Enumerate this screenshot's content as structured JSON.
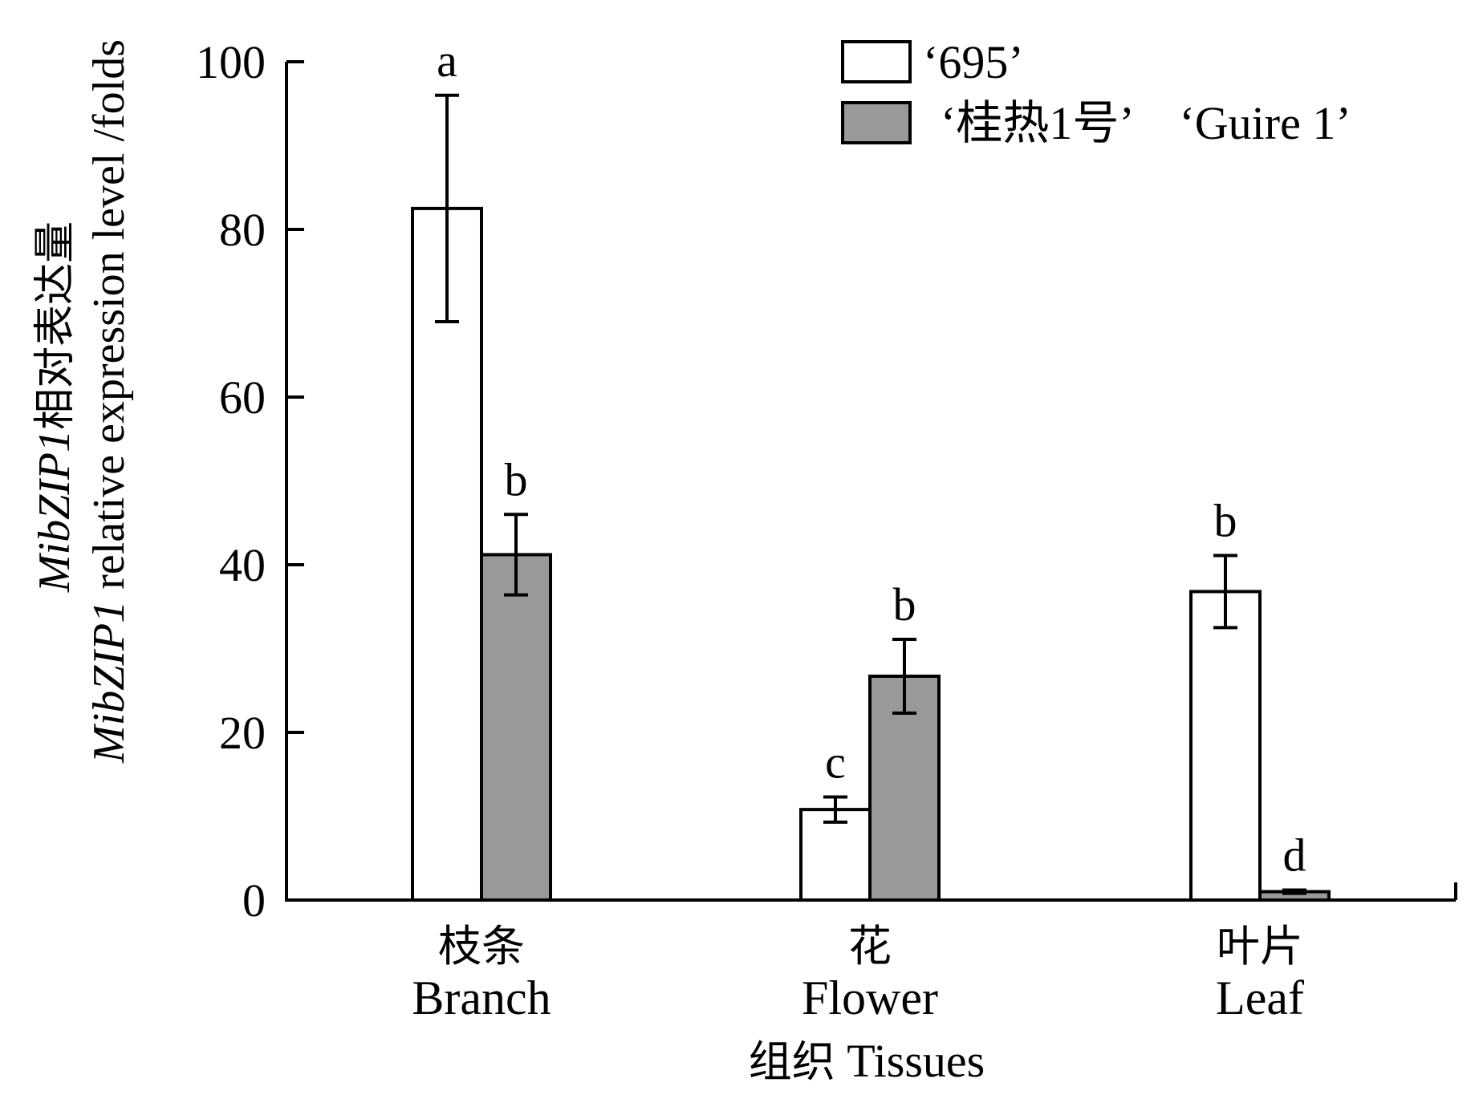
{
  "chart_data": {
    "type": "bar",
    "categories": [
      {
        "zh": "枝条",
        "en": "Branch"
      },
      {
        "zh": "花",
        "en": "Flower"
      },
      {
        "zh": "叶片",
        "en": "Leaf"
      }
    ],
    "series": [
      {
        "name": "‘695’",
        "color": "#ffffff",
        "values": [
          82.5,
          10.8,
          36.8
        ],
        "errors": [
          13.5,
          1.5,
          4.3
        ],
        "letters": [
          "a",
          "c",
          "b"
        ]
      },
      {
        "name": "‘桂热1号’　‘Guire 1’",
        "color": "#999999",
        "values": [
          41.2,
          26.7,
          1.0
        ],
        "errors": [
          4.8,
          4.4,
          0.2
        ],
        "letters": [
          "b",
          "b",
          "d"
        ]
      }
    ],
    "ylim": [
      0,
      100
    ],
    "yticks": [
      "0",
      "20",
      "40",
      "60",
      "80",
      "100"
    ],
    "ylabel": {
      "line1_italic": "MibZIP1",
      "line1_rest": "相对表达量",
      "line2_italic": "MibZIP1",
      "line2_rest": " relative expression level /folds"
    },
    "xlabel": {
      "zh": "组织",
      "en": "Tissues"
    },
    "legend_position": "top-right",
    "grid": false
  }
}
